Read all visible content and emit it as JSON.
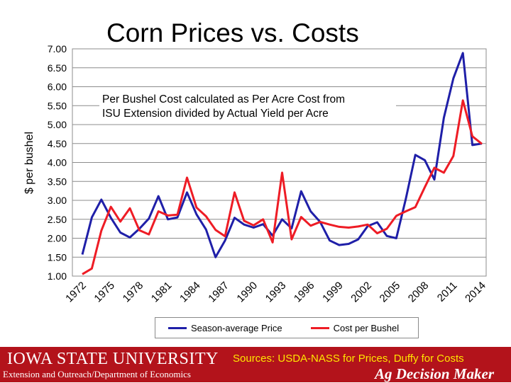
{
  "footer": {
    "university": "IOWA STATE UNIVERSITY",
    "sources": "Sources: USDA-NASS for Prices, Duffy for Costs",
    "department": "Extension and Outreach/Department of Economics",
    "brand": "Ag Decision Maker"
  },
  "colors": {
    "price_series": "#1f1fa8",
    "cost_series": "#ee1c25",
    "footer_bg": "#b3131b",
    "sources_text": "#ffe600"
  },
  "chart_data": {
    "type": "line",
    "title": "Corn Prices vs. Costs",
    "ylabel": "$ per bushel",
    "xlabel": "",
    "annotation": "Per Bushel Cost calculated as Per Acre Cost from\nISU Extension divided by Actual Yield per Acre",
    "ylim": [
      1.0,
      7.0
    ],
    "yticks": [
      "1.00",
      "1.50",
      "2.00",
      "2.50",
      "3.00",
      "3.50",
      "4.00",
      "4.50",
      "5.00",
      "5.50",
      "6.00",
      "6.50",
      "7.00"
    ],
    "xticks": [
      "1972",
      "1975",
      "1978",
      "1981",
      "1984",
      "1987",
      "1990",
      "1993",
      "1996",
      "1999",
      "2002",
      "2005",
      "2008",
      "2011",
      "2014"
    ],
    "grid": true,
    "legend_position": "bottom",
    "x": [
      1972,
      1973,
      1974,
      1975,
      1976,
      1977,
      1978,
      1979,
      1980,
      1981,
      1982,
      1983,
      1984,
      1985,
      1986,
      1987,
      1988,
      1989,
      1990,
      1991,
      1992,
      1993,
      1994,
      1995,
      1996,
      1997,
      1998,
      1999,
      2000,
      2001,
      2002,
      2003,
      2004,
      2005,
      2006,
      2007,
      2008,
      2009,
      2010,
      2011,
      2012,
      2013,
      2014
    ],
    "series": [
      {
        "name": "Season-average Price",
        "values": [
          1.57,
          2.55,
          3.02,
          2.54,
          2.15,
          2.02,
          2.25,
          2.52,
          3.11,
          2.5,
          2.55,
          3.21,
          2.63,
          2.23,
          1.5,
          1.94,
          2.54,
          2.36,
          2.28,
          2.37,
          2.07,
          2.5,
          2.26,
          3.24,
          2.71,
          2.43,
          1.94,
          1.82,
          1.85,
          1.97,
          2.32,
          2.42,
          2.06,
          2.0,
          3.04,
          4.2,
          4.06,
          3.55,
          5.18,
          6.22,
          6.89,
          4.46,
          4.5
        ]
      },
      {
        "name": "Cost per Bushel",
        "values": [
          1.05,
          1.2,
          2.2,
          2.83,
          2.44,
          2.79,
          2.21,
          2.1,
          2.71,
          2.6,
          2.62,
          3.6,
          2.81,
          2.58,
          2.22,
          2.05,
          3.21,
          2.46,
          2.34,
          2.5,
          1.89,
          3.73,
          1.97,
          2.56,
          2.33,
          2.43,
          2.36,
          2.3,
          2.28,
          2.31,
          2.36,
          2.13,
          2.25,
          2.59,
          2.71,
          2.82,
          3.35,
          3.86,
          3.73,
          4.17,
          5.64,
          4.69,
          4.49
        ]
      }
    ]
  }
}
